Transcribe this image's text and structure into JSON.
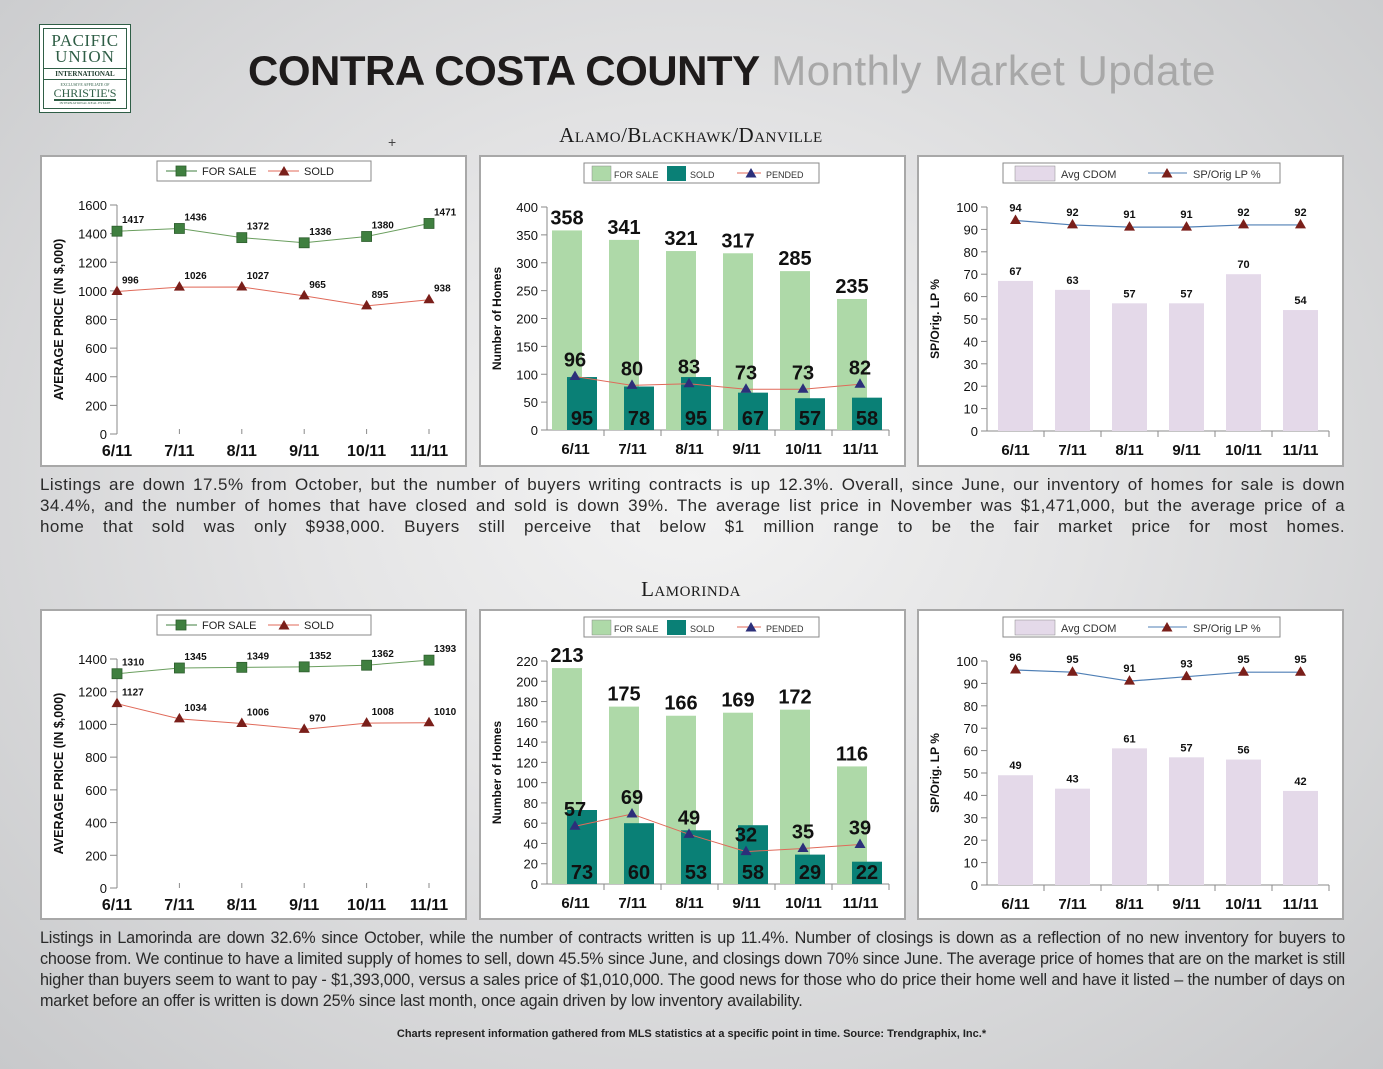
{
  "logo": {
    "line1": "PACIFIC",
    "line2": "UNION",
    "line3": "INTERNATIONAL",
    "line4": "EXCLUSIVE AFFILIATE OF",
    "line5": "CHRISTIE'S",
    "line6": "INTERNATIONAL REAL ESTATE"
  },
  "header": {
    "title_bold": "CONTRA COSTA COUNTY",
    "title_light": "Monthly Market Update"
  },
  "cursor_glyph": "+",
  "sections": [
    {
      "title": "Alamo/Blackhawk/Danville",
      "commentary": "Listings are down 17.5% from October, but the number of buyers writing contracts is up 12.3%. Overall, since June, our inventory of homes for sale is down 34.4%, and the number of homes that have closed and sold is down 39%. The average list price in November was $1,471,000, but the average price of a home that sold was only $938,000. Buyers still perceive that below $1 million range to be the fair market price for most homes."
    },
    {
      "title": "Lamorinda",
      "commentary": "Listings in Lamorinda are down 32.6% since October, while the number of contracts written is up 11.4%.  Number of closings is down as a reflection of no new inventory for buyers to choose from. We continue to have a limited supply of homes to sell, down 45.5% since June, and closings down 70% since June.  The average price of homes that are on the market is still higher than buyers seem to want to pay - $1,393,000, versus a sales price of $1,010,000. The good news for those who do price their home well and have it listed – the number of days on market before an offer is written is down 25% since last month, once again driven by low inventory availability."
    }
  ],
  "footer": "Charts represent information gathered from MLS statistics at a specific point in time. Source: Trendgraphix, Inc.*",
  "colors": {
    "for_sale_line": "#3f7f3f",
    "sold_line_marker": "#7a1f1a",
    "sold_line": "#e06a5a",
    "for_sale_bar": "#aed9a8",
    "sold_bar": "#0a8076",
    "pended_marker": "#2c2f7a",
    "cdom_bar": "#e4d9e9",
    "splp_line": "#4f7fb5"
  },
  "chart_data": [
    {
      "id": "abd-price",
      "type": "line",
      "title": "",
      "categories": [
        "6/11",
        "7/11",
        "8/11",
        "9/11",
        "10/11",
        "11/11"
      ],
      "series": [
        {
          "name": "FOR SALE",
          "marker": "square",
          "values": [
            1417,
            1436,
            1372,
            1336,
            1380,
            1471
          ]
        },
        {
          "name": "SOLD",
          "marker": "triangle",
          "values": [
            996,
            1026,
            1027,
            965,
            895,
            938
          ]
        }
      ],
      "xlabel": "",
      "ylabel": "AVERAGE PRICE (IN $,000)",
      "ylim": [
        0,
        1600
      ],
      "yticks": [
        0,
        200,
        400,
        600,
        800,
        1000,
        1200,
        1400,
        1600
      ],
      "legend": "top-center",
      "grid": false
    },
    {
      "id": "abd-homes",
      "type": "bar",
      "title": "",
      "categories": [
        "6/11",
        "7/11",
        "8/11",
        "9/11",
        "10/11",
        "11/11"
      ],
      "series": [
        {
          "name": "FOR SALE",
          "kind": "bar",
          "values": [
            358,
            341,
            321,
            317,
            285,
            235
          ]
        },
        {
          "name": "SOLD",
          "kind": "bar",
          "values": [
            95,
            78,
            95,
            67,
            57,
            58
          ]
        },
        {
          "name": "PENDED",
          "kind": "line",
          "values": [
            96,
            80,
            83,
            73,
            73,
            82
          ]
        }
      ],
      "xlabel": "",
      "ylabel": "Number of Homes",
      "ylim": [
        0,
        400
      ],
      "yticks": [
        0,
        50,
        100,
        150,
        200,
        250,
        300,
        350,
        400
      ],
      "legend": "top-center",
      "grid": false
    },
    {
      "id": "abd-cdom",
      "type": "bar",
      "title": "",
      "categories": [
        "6/11",
        "7/11",
        "8/11",
        "9/11",
        "10/11",
        "11/11"
      ],
      "series": [
        {
          "name": "Avg CDOM",
          "kind": "bar",
          "values": [
            67,
            63,
            57,
            57,
            70,
            54
          ]
        },
        {
          "name": "SP/Orig LP %",
          "kind": "line",
          "values": [
            94,
            92,
            91,
            91,
            92,
            92
          ]
        }
      ],
      "xlabel": "",
      "ylabel": "SP/Orig. LP %",
      "ylim": [
        0,
        100
      ],
      "yticks": [
        0,
        10,
        20,
        30,
        40,
        50,
        60,
        70,
        80,
        90,
        100
      ],
      "legend": "top-center",
      "grid": false
    },
    {
      "id": "lam-price",
      "type": "line",
      "title": "",
      "categories": [
        "6/11",
        "7/11",
        "8/11",
        "9/11",
        "10/11",
        "11/11"
      ],
      "series": [
        {
          "name": "FOR SALE",
          "marker": "square",
          "values": [
            1310,
            1345,
            1349,
            1352,
            1362,
            1393
          ]
        },
        {
          "name": "SOLD",
          "marker": "triangle",
          "values": [
            1127,
            1034,
            1006,
            970,
            1008,
            1010
          ]
        }
      ],
      "xlabel": "",
      "ylabel": "AVERAGE PRICE (IN $,000)",
      "ylim": [
        0,
        1400
      ],
      "yticks": [
        0,
        200,
        400,
        600,
        800,
        1000,
        1200,
        1400
      ],
      "legend": "top-center",
      "grid": false
    },
    {
      "id": "lam-homes",
      "type": "bar",
      "title": "",
      "categories": [
        "6/11",
        "7/11",
        "8/11",
        "9/11",
        "10/11",
        "11/11"
      ],
      "series": [
        {
          "name": "FOR SALE",
          "kind": "bar",
          "values": [
            213,
            175,
            166,
            169,
            172,
            116
          ]
        },
        {
          "name": "SOLD",
          "kind": "bar",
          "values": [
            73,
            60,
            53,
            58,
            29,
            22
          ]
        },
        {
          "name": "PENDED",
          "kind": "line",
          "values": [
            57,
            69,
            49,
            32,
            35,
            39
          ]
        }
      ],
      "xlabel": "",
      "ylabel": "Number of Homes",
      "ylim": [
        0,
        220
      ],
      "yticks": [
        0,
        20,
        40,
        60,
        80,
        100,
        120,
        140,
        160,
        180,
        200,
        220
      ],
      "legend": "top-center",
      "grid": false
    },
    {
      "id": "lam-cdom",
      "type": "bar",
      "title": "",
      "categories": [
        "6/11",
        "7/11",
        "8/11",
        "9/11",
        "10/11",
        "11/11"
      ],
      "series": [
        {
          "name": "Avg CDOM",
          "kind": "bar",
          "values": [
            49,
            43,
            61,
            57,
            56,
            42
          ]
        },
        {
          "name": "SP/Orig LP %",
          "kind": "line",
          "values": [
            96,
            95,
            91,
            93,
            95,
            95
          ]
        }
      ],
      "xlabel": "",
      "ylabel": "SP/Orig. LP %",
      "ylim": [
        0,
        100
      ],
      "yticks": [
        0,
        10,
        20,
        30,
        40,
        50,
        60,
        70,
        80,
        90,
        100
      ],
      "legend": "top-center",
      "grid": false
    }
  ]
}
